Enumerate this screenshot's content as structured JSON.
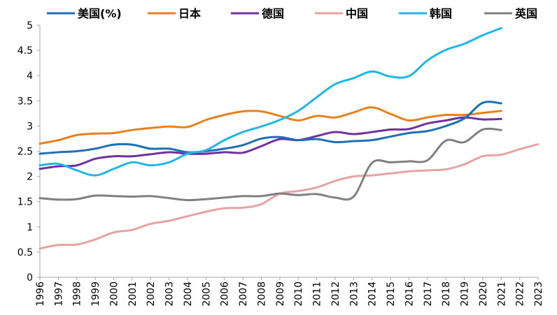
{
  "chart_data": {
    "type": "line",
    "title": "",
    "xlabel": "",
    "ylabel": "",
    "ylim": [
      0,
      5
    ],
    "yticks": [
      "0",
      "0.5",
      "1",
      "1.5",
      "2",
      "2.5",
      "3",
      "3.5",
      "4",
      "4.5",
      "5"
    ],
    "categories": [
      "1996",
      "1997",
      "1998",
      "1999",
      "2000",
      "2001",
      "2002",
      "2003",
      "2004",
      "2005",
      "2006",
      "2007",
      "2008",
      "2009",
      "2010",
      "2011",
      "2012",
      "2013",
      "2014",
      "2015",
      "2016",
      "2017",
      "2018",
      "2019",
      "2020",
      "2021",
      "2022",
      "2023"
    ],
    "legend_position": "top",
    "grid": false,
    "series": [
      {
        "name": "美国(%)",
        "color": "#1f6fb5",
        "values": [
          2.45,
          2.48,
          2.5,
          2.55,
          2.63,
          2.63,
          2.55,
          2.55,
          2.48,
          2.5,
          2.55,
          2.62,
          2.75,
          2.78,
          2.72,
          2.74,
          2.68,
          2.7,
          2.72,
          2.79,
          2.86,
          2.9,
          3.0,
          3.15,
          3.46,
          3.45,
          null,
          null
        ]
      },
      {
        "name": "日本",
        "color": "#e8801c",
        "values": [
          2.65,
          2.72,
          2.82,
          2.85,
          2.86,
          2.92,
          2.96,
          2.99,
          2.98,
          3.12,
          3.22,
          3.29,
          3.29,
          3.2,
          3.11,
          3.2,
          3.17,
          3.27,
          3.37,
          3.24,
          3.11,
          3.17,
          3.22,
          3.22,
          3.26,
          3.3,
          null,
          null
        ]
      },
      {
        "name": "德国",
        "color": "#7030a0",
        "values": [
          2.15,
          2.2,
          2.22,
          2.35,
          2.4,
          2.4,
          2.44,
          2.48,
          2.45,
          2.45,
          2.48,
          2.47,
          2.6,
          2.74,
          2.72,
          2.8,
          2.88,
          2.84,
          2.88,
          2.93,
          2.94,
          3.05,
          3.11,
          3.17,
          3.13,
          3.14,
          null,
          null
        ]
      },
      {
        "name": "中国",
        "color": "#e6a3a3",
        "values": [
          0.57,
          0.64,
          0.65,
          0.75,
          0.89,
          0.94,
          1.06,
          1.12,
          1.21,
          1.3,
          1.37,
          1.38,
          1.45,
          1.66,
          1.71,
          1.78,
          1.91,
          2.0,
          2.02,
          2.06,
          2.1,
          2.12,
          2.14,
          2.24,
          2.4,
          2.43,
          2.54,
          2.64
        ]
      },
      {
        "name": "韩国",
        "color": "#1eb7e8",
        "values": [
          2.22,
          2.25,
          2.12,
          2.02,
          2.15,
          2.28,
          2.22,
          2.28,
          2.45,
          2.52,
          2.72,
          2.88,
          2.99,
          3.12,
          3.3,
          3.57,
          3.83,
          3.95,
          4.08,
          3.98,
          3.99,
          4.3,
          4.51,
          4.63,
          4.8,
          4.94,
          null,
          null
        ]
      },
      {
        "name": "英国",
        "color": "#808080",
        "values": [
          1.57,
          1.54,
          1.55,
          1.62,
          1.61,
          1.6,
          1.61,
          1.57,
          1.53,
          1.55,
          1.58,
          1.61,
          1.61,
          1.66,
          1.63,
          1.65,
          1.58,
          1.6,
          2.27,
          2.28,
          2.3,
          2.32,
          2.71,
          2.68,
          2.93,
          2.92,
          null,
          null
        ]
      }
    ]
  }
}
